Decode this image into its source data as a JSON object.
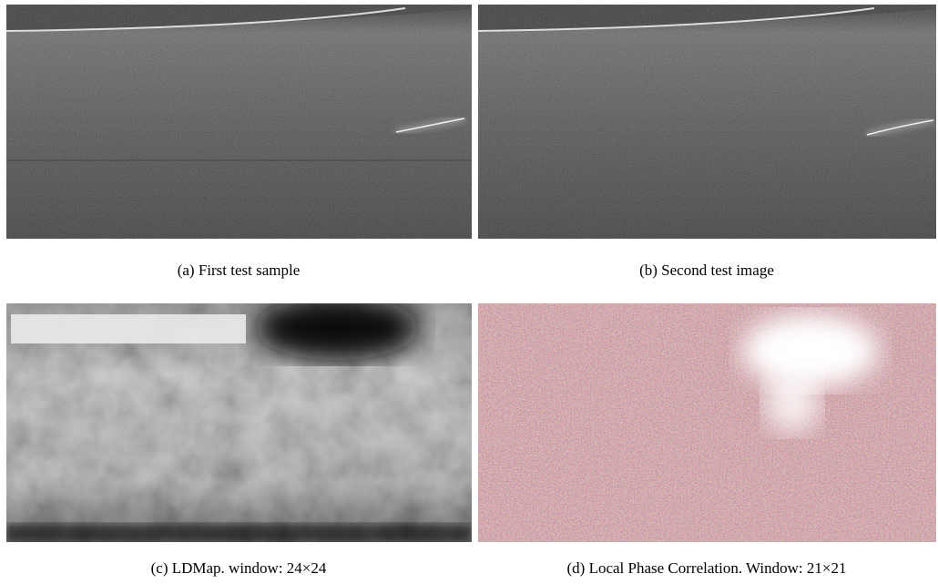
{
  "figure": {
    "panels": [
      {
        "caption": "(a)  First test sample"
      },
      {
        "caption": "(b)  Second test image"
      },
      {
        "caption": "(c)  LDMap. window: 24×24"
      },
      {
        "caption": "(d)  Local Phase Correlation. Window: 21×21"
      }
    ]
  }
}
